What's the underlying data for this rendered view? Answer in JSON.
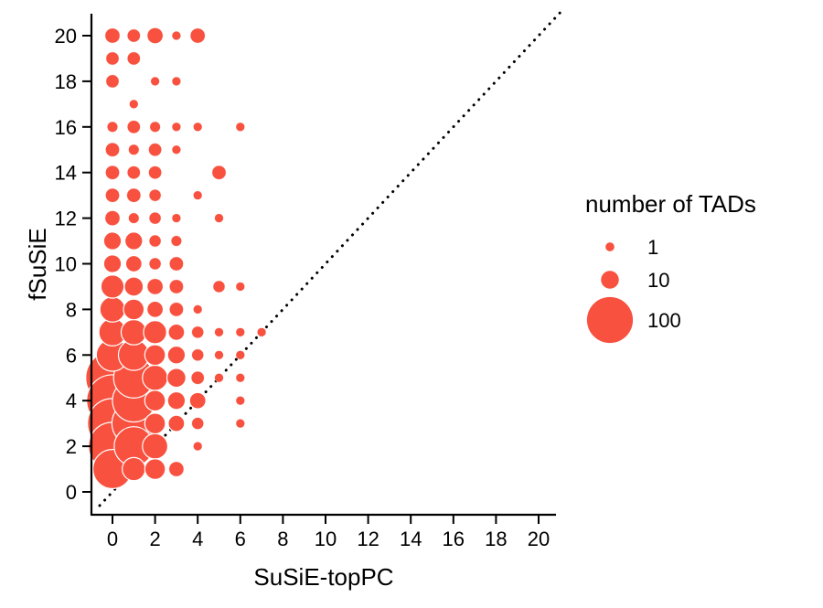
{
  "chart_data": {
    "type": "scatter",
    "xlabel": "SuSiE-topPC",
    "ylabel": "fSuSiE",
    "xlim": [
      -1,
      21
    ],
    "ylim": [
      -1,
      21
    ],
    "x_ticks": [
      0,
      2,
      4,
      6,
      8,
      10,
      12,
      14,
      16,
      18,
      20
    ],
    "y_ticks": [
      0,
      2,
      4,
      6,
      8,
      10,
      12,
      14,
      16,
      18,
      20
    ],
    "reference_line": "y = x (dotted)",
    "point_color": "#F8513F",
    "legend": {
      "title": "number of TADs",
      "placement": "right",
      "entries": [
        {
          "label": "1",
          "value": 1
        },
        {
          "label": "10",
          "value": 10
        },
        {
          "label": "100",
          "value": 100
        }
      ]
    },
    "points": [
      {
        "x": 0,
        "y": 1,
        "n": 70
      },
      {
        "x": 0,
        "y": 2,
        "n": 110
      },
      {
        "x": 0,
        "y": 3,
        "n": 120
      },
      {
        "x": 0,
        "y": 4,
        "n": 130
      },
      {
        "x": 0,
        "y": 5,
        "n": 140
      },
      {
        "x": 0,
        "y": 6,
        "n": 45
      },
      {
        "x": 0,
        "y": 7,
        "n": 30
      },
      {
        "x": 0,
        "y": 8,
        "n": 25
      },
      {
        "x": 0,
        "y": 9,
        "n": 20
      },
      {
        "x": 0,
        "y": 10,
        "n": 10
      },
      {
        "x": 0,
        "y": 11,
        "n": 10
      },
      {
        "x": 0,
        "y": 12,
        "n": 6
      },
      {
        "x": 0,
        "y": 13,
        "n": 5
      },
      {
        "x": 0,
        "y": 14,
        "n": 5
      },
      {
        "x": 0,
        "y": 15,
        "n": 5
      },
      {
        "x": 0,
        "y": 16,
        "n": 2
      },
      {
        "x": 0,
        "y": 18,
        "n": 4
      },
      {
        "x": 0,
        "y": 19,
        "n": 4
      },
      {
        "x": 0,
        "y": 20,
        "n": 6
      },
      {
        "x": 1,
        "y": 1,
        "n": 20
      },
      {
        "x": 1,
        "y": 2,
        "n": 70
      },
      {
        "x": 1,
        "y": 3,
        "n": 90
      },
      {
        "x": 1,
        "y": 4,
        "n": 85
      },
      {
        "x": 1,
        "y": 5,
        "n": 75
      },
      {
        "x": 1,
        "y": 6,
        "n": 40
      },
      {
        "x": 1,
        "y": 7,
        "n": 25
      },
      {
        "x": 1,
        "y": 8,
        "n": 15
      },
      {
        "x": 1,
        "y": 9,
        "n": 12
      },
      {
        "x": 1,
        "y": 10,
        "n": 8
      },
      {
        "x": 1,
        "y": 11,
        "n": 10
      },
      {
        "x": 1,
        "y": 12,
        "n": 2
      },
      {
        "x": 1,
        "y": 13,
        "n": 5
      },
      {
        "x": 1,
        "y": 14,
        "n": 4
      },
      {
        "x": 1,
        "y": 15,
        "n": 2
      },
      {
        "x": 1,
        "y": 16,
        "n": 4
      },
      {
        "x": 1,
        "y": 17,
        "n": 1
      },
      {
        "x": 1,
        "y": 19,
        "n": 4
      },
      {
        "x": 1,
        "y": 20,
        "n": 4
      },
      {
        "x": 2,
        "y": 1,
        "n": 15
      },
      {
        "x": 2,
        "y": 2,
        "n": 25
      },
      {
        "x": 2,
        "y": 3,
        "n": 15
      },
      {
        "x": 2,
        "y": 4,
        "n": 15
      },
      {
        "x": 2,
        "y": 5,
        "n": 25
      },
      {
        "x": 2,
        "y": 6,
        "n": 15
      },
      {
        "x": 2,
        "y": 7,
        "n": 20
      },
      {
        "x": 2,
        "y": 8,
        "n": 8
      },
      {
        "x": 2,
        "y": 9,
        "n": 7
      },
      {
        "x": 2,
        "y": 10,
        "n": 3
      },
      {
        "x": 2,
        "y": 11,
        "n": 3
      },
      {
        "x": 2,
        "y": 12,
        "n": 3
      },
      {
        "x": 2,
        "y": 13,
        "n": 3
      },
      {
        "x": 2,
        "y": 14,
        "n": 4
      },
      {
        "x": 2,
        "y": 15,
        "n": 4
      },
      {
        "x": 2,
        "y": 16,
        "n": 2
      },
      {
        "x": 2,
        "y": 18,
        "n": 1
      },
      {
        "x": 2,
        "y": 20,
        "n": 7
      },
      {
        "x": 3,
        "y": 1,
        "n": 6
      },
      {
        "x": 3,
        "y": 3,
        "n": 8
      },
      {
        "x": 3,
        "y": 4,
        "n": 10
      },
      {
        "x": 3,
        "y": 5,
        "n": 12
      },
      {
        "x": 3,
        "y": 6,
        "n": 10
      },
      {
        "x": 3,
        "y": 7,
        "n": 8
      },
      {
        "x": 3,
        "y": 8,
        "n": 5
      },
      {
        "x": 3,
        "y": 9,
        "n": 5
      },
      {
        "x": 3,
        "y": 10,
        "n": 5
      },
      {
        "x": 3,
        "y": 11,
        "n": 2
      },
      {
        "x": 3,
        "y": 12,
        "n": 1
      },
      {
        "x": 3,
        "y": 15,
        "n": 1
      },
      {
        "x": 3,
        "y": 16,
        "n": 1
      },
      {
        "x": 3,
        "y": 18,
        "n": 1
      },
      {
        "x": 3,
        "y": 20,
        "n": 1
      },
      {
        "x": 4,
        "y": 2,
        "n": 1
      },
      {
        "x": 4,
        "y": 3,
        "n": 3
      },
      {
        "x": 4,
        "y": 4,
        "n": 8
      },
      {
        "x": 4,
        "y": 5,
        "n": 4
      },
      {
        "x": 4,
        "y": 6,
        "n": 3
      },
      {
        "x": 4,
        "y": 7,
        "n": 3
      },
      {
        "x": 4,
        "y": 8,
        "n": 1
      },
      {
        "x": 4,
        "y": 13,
        "n": 1
      },
      {
        "x": 4,
        "y": 16,
        "n": 1
      },
      {
        "x": 4,
        "y": 20,
        "n": 6
      },
      {
        "x": 5,
        "y": 5,
        "n": 1
      },
      {
        "x": 5,
        "y": 6,
        "n": 1
      },
      {
        "x": 5,
        "y": 7,
        "n": 1
      },
      {
        "x": 5,
        "y": 9,
        "n": 3
      },
      {
        "x": 5,
        "y": 12,
        "n": 1
      },
      {
        "x": 5,
        "y": 14,
        "n": 5
      },
      {
        "x": 6,
        "y": 3,
        "n": 1
      },
      {
        "x": 6,
        "y": 4,
        "n": 1
      },
      {
        "x": 6,
        "y": 5,
        "n": 1
      },
      {
        "x": 6,
        "y": 6,
        "n": 1
      },
      {
        "x": 6,
        "y": 7,
        "n": 1
      },
      {
        "x": 6,
        "y": 9,
        "n": 1
      },
      {
        "x": 6,
        "y": 16,
        "n": 1
      },
      {
        "x": 7,
        "y": 7,
        "n": 1
      }
    ]
  }
}
